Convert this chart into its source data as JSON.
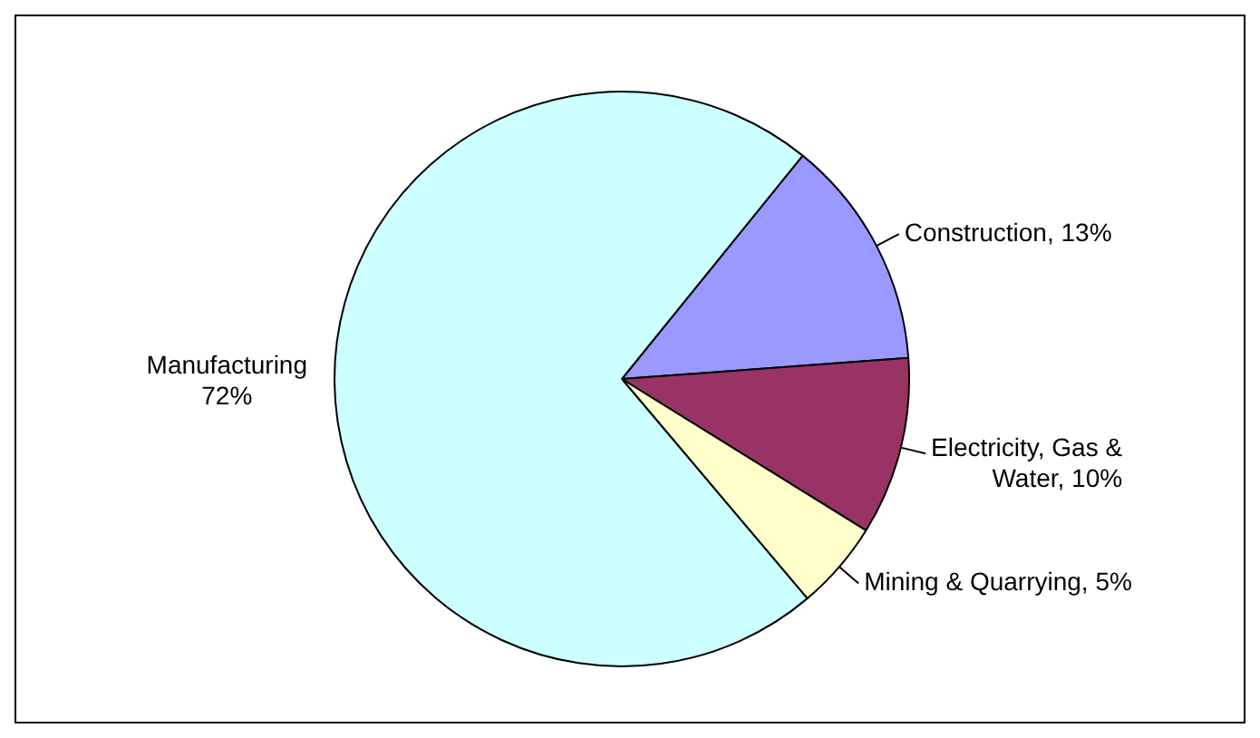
{
  "chart_data": {
    "type": "pie",
    "categories": [
      "Construction",
      "Electricity, Gas & Water",
      "Mining & Quarrying",
      "Manufacturing"
    ],
    "values": [
      13,
      10,
      5,
      72
    ],
    "colors": [
      "#9999ff",
      "#993366",
      "#ffffcc",
      "#ccffff"
    ],
    "value_labels": [
      "13%",
      "10%",
      "5%",
      "72%"
    ],
    "legend": false
  }
}
